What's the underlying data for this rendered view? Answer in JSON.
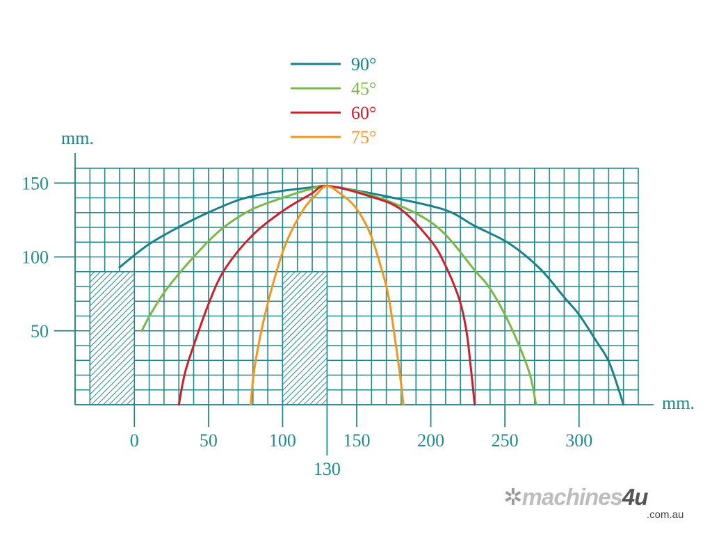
{
  "colors": {
    "grid": "#1f8a8c",
    "text": "#1f8a8c",
    "hatch": "#1f8a8c"
  },
  "chart_data": {
    "type": "line",
    "title": "",
    "xlabel": "mm.",
    "ylabel": "mm.",
    "xlim": [
      -40,
      340
    ],
    "ylim": [
      0,
      160
    ],
    "grid": true,
    "grid_step": 10,
    "legend_placement": "top-center",
    "x_ticks": [
      0,
      50,
      100,
      150,
      200,
      250,
      300
    ],
    "x_ticks_labels": [
      "0",
      "50",
      "100",
      "150",
      "200",
      "250",
      "300"
    ],
    "x_extra_tick": 130,
    "x_extra_tick_label": "130",
    "y_ticks": [
      50,
      100,
      150
    ],
    "y_ticks_labels": [
      "50",
      "100",
      "150"
    ],
    "hatched_blocks": [
      {
        "x0": -30,
        "x1": 0,
        "height": 90
      },
      {
        "x0": 100,
        "x1": 130,
        "height": 90
      }
    ],
    "series": [
      {
        "name": "90°",
        "color": "#17828a",
        "points": [
          [
            -10,
            93
          ],
          [
            9,
            108
          ],
          [
            29.6,
            120
          ],
          [
            49.8,
            130
          ],
          [
            71.8,
            139
          ],
          [
            95,
            144
          ],
          [
            119,
            147
          ],
          [
            130,
            148
          ],
          [
            143.7,
            146
          ],
          [
            170,
            141
          ],
          [
            209,
            132
          ],
          [
            229.6,
            121
          ],
          [
            253,
            109
          ],
          [
            273.7,
            92
          ],
          [
            290.6,
            72
          ],
          [
            300,
            61
          ],
          [
            311.7,
            43
          ],
          [
            320.6,
            28
          ],
          [
            330,
            0
          ]
        ]
      },
      {
        "name": "45°",
        "color": "#7ab648",
        "points": [
          [
            5,
            50
          ],
          [
            10.8,
            61
          ],
          [
            21.6,
            78
          ],
          [
            40,
            100
          ],
          [
            59,
            119
          ],
          [
            79,
            132
          ],
          [
            100,
            140
          ],
          [
            119,
            146
          ],
          [
            130,
            148
          ],
          [
            159,
            142
          ],
          [
            189,
            130
          ],
          [
            209,
            116
          ],
          [
            229.6,
            91
          ],
          [
            239,
            80
          ],
          [
            250,
            61
          ],
          [
            259.6,
            40
          ],
          [
            267,
            20
          ],
          [
            271,
            0
          ]
        ]
      },
      {
        "name": "60°",
        "color": "#cc1f2e",
        "points": [
          [
            30,
            0
          ],
          [
            34,
            21
          ],
          [
            40,
            40
          ],
          [
            50,
            68
          ],
          [
            60.6,
            91
          ],
          [
            79,
            114
          ],
          [
            100,
            131
          ],
          [
            119,
            142.5
          ],
          [
            130,
            148
          ],
          [
            159,
            141
          ],
          [
            180,
            132
          ],
          [
            200,
            111
          ],
          [
            209,
            96
          ],
          [
            219,
            72
          ],
          [
            224,
            50
          ],
          [
            227,
            25
          ],
          [
            229.6,
            0
          ]
        ]
      },
      {
        "name": "75°",
        "color": "#f0961e",
        "points": [
          [
            78.5,
            0
          ],
          [
            81,
            24.5
          ],
          [
            87,
            56
          ],
          [
            95,
            87
          ],
          [
            103,
            111
          ],
          [
            114,
            132
          ],
          [
            123,
            142.5
          ],
          [
            130,
            148
          ],
          [
            140,
            142
          ],
          [
            149.6,
            133
          ],
          [
            159,
            116
          ],
          [
            167,
            91
          ],
          [
            171.7,
            72
          ],
          [
            176.5,
            40
          ],
          [
            179.5,
            18
          ],
          [
            181.5,
            0
          ]
        ]
      }
    ]
  },
  "watermark": {
    "brand": "machines",
    "brand_accent": "4u",
    "domain": ".com.au"
  }
}
